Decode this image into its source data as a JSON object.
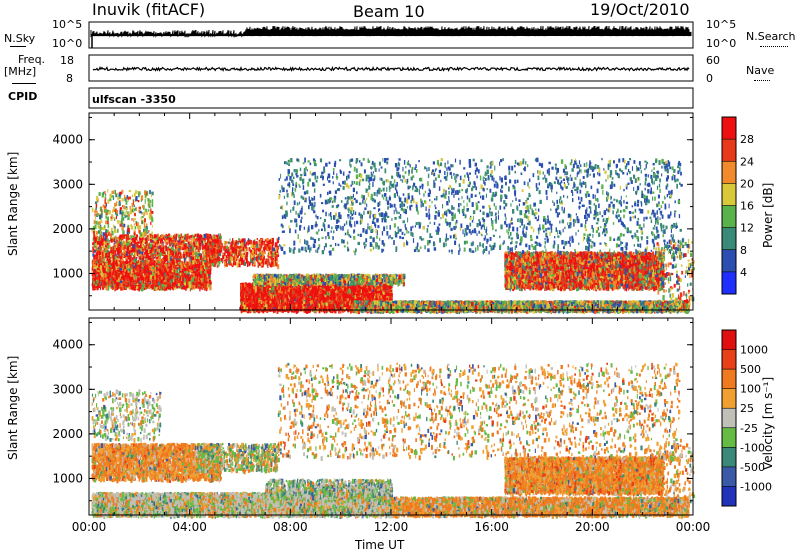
{
  "header": {
    "station": "Inuvik (fitACF)",
    "beam": "Beam 10",
    "date": "19/Oct/2010"
  },
  "top_panels": {
    "nsky_label": "N.Sky",
    "nsky_ticks": [
      "10^5",
      "10^0"
    ],
    "nsearch_label": "N.Search",
    "nsearch_ticks": [
      "10^5",
      "10^0"
    ],
    "freq_label": "Freq.",
    "freq_unit": "[MHz]",
    "freq_ticks": [
      "18",
      "8"
    ],
    "nave_label": "Nave",
    "nave_ticks": [
      "60",
      "0"
    ],
    "cpid_label": "CPID",
    "cpid_value": "ulfscan -3350"
  },
  "chart_data": [
    {
      "type": "heatmap",
      "panel": "power",
      "ylabel": "Slant Range [km]",
      "xlabel": "",
      "xlim": [
        0,
        24
      ],
      "ylim": [
        180,
        4600
      ],
      "yticks": [
        "1000",
        "2000",
        "3000",
        "4000"
      ],
      "xticks": [
        "00:00",
        "04:00",
        "08:00",
        "12:00",
        "16:00",
        "20:00",
        "00:00"
      ],
      "colorbar": {
        "label": "Power [dB]",
        "ticks": [
          "4",
          "8",
          "12",
          "16",
          "20",
          "24",
          "28"
        ],
        "colors": [
          "#1f2fff",
          "#2a4fb0",
          "#3a8a78",
          "#5ab24a",
          "#d8c83a",
          "#f08a2a",
          "#e83a1a",
          "#ee1010"
        ]
      }
    },
    {
      "type": "heatmap",
      "panel": "velocity",
      "ylabel": "Slant Range [km]",
      "xlabel": "Time UT",
      "xlim": [
        0,
        24
      ],
      "ylim": [
        180,
        4600
      ],
      "yticks": [
        "1000",
        "2000",
        "3000",
        "4000"
      ],
      "xticks": [
        "00:00",
        "04:00",
        "08:00",
        "12:00",
        "16:00",
        "20:00",
        "00:00"
      ],
      "colorbar": {
        "label": "Velocity [m s⁻¹]",
        "ticks": [
          "1000",
          "500",
          "100",
          "25",
          "-25",
          "-100",
          "-500",
          "-1000"
        ],
        "colors": [
          "#2233bb",
          "#3a5aa8",
          "#3a8878",
          "#66bb44",
          "#c0c0b8",
          "#f0a030",
          "#f07a20",
          "#e84018",
          "#e01010"
        ]
      }
    }
  ]
}
